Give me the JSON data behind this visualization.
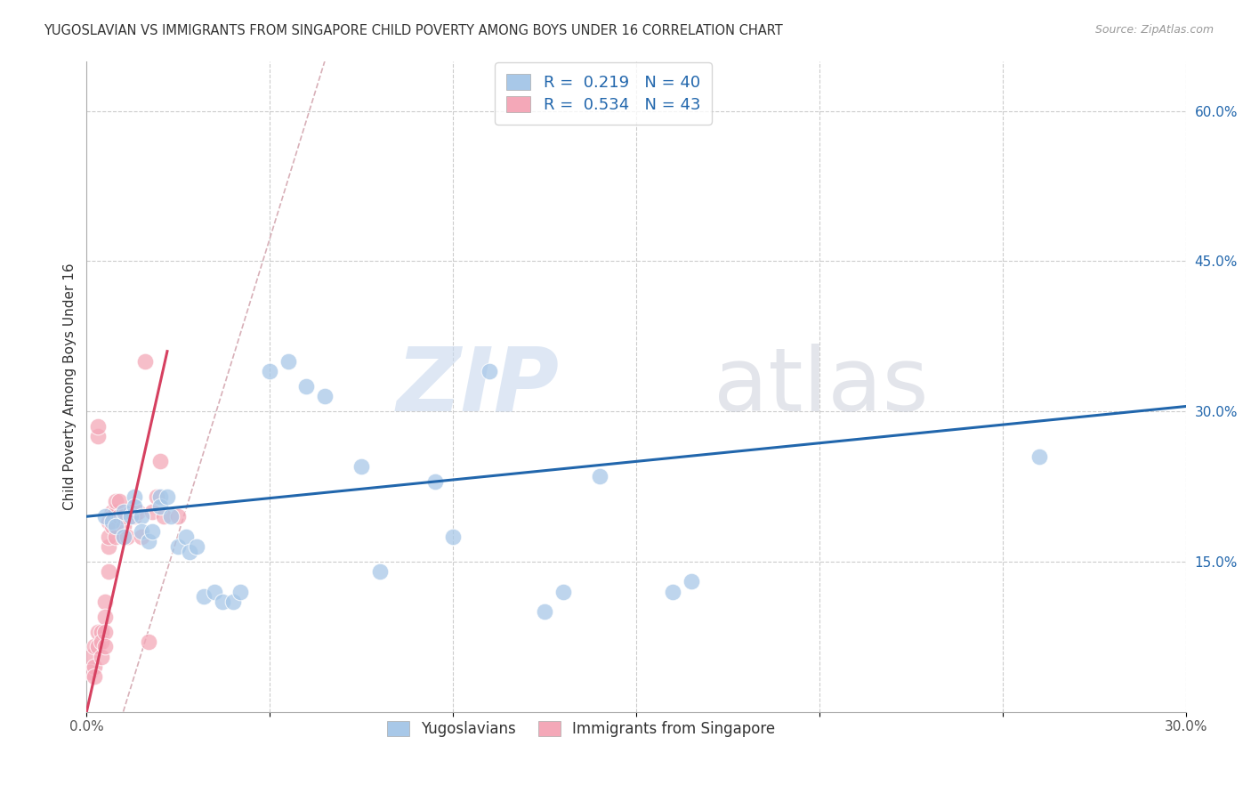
{
  "title": "YUGOSLAVIAN VS IMMIGRANTS FROM SINGAPORE CHILD POVERTY AMONG BOYS UNDER 16 CORRELATION CHART",
  "source": "Source: ZipAtlas.com",
  "ylabel": "Child Poverty Among Boys Under 16",
  "xlim": [
    0.0,
    0.3
  ],
  "ylim": [
    0.0,
    0.65
  ],
  "x_ticks": [
    0.0,
    0.05,
    0.1,
    0.15,
    0.2,
    0.25,
    0.3
  ],
  "x_tick_labels": [
    "0.0%",
    "",
    "",
    "",
    "",
    "",
    "30.0%"
  ],
  "y_ticks_right": [
    0.15,
    0.3,
    0.45,
    0.6
  ],
  "y_tick_labels_right": [
    "15.0%",
    "30.0%",
    "45.0%",
    "60.0%"
  ],
  "blue_R": 0.219,
  "blue_N": 40,
  "pink_R": 0.534,
  "pink_N": 43,
  "blue_color": "#a8c8e8",
  "pink_color": "#f4a8b8",
  "blue_line_color": "#2166ac",
  "pink_line_color": "#d64060",
  "ref_line_color": "#d8b0b8",
  "blue_line_x0": 0.0,
  "blue_line_y0": 0.195,
  "blue_line_x1": 0.3,
  "blue_line_y1": 0.305,
  "pink_line_x0": 0.0,
  "pink_line_y0": 0.0,
  "pink_line_x1": 0.022,
  "pink_line_y1": 0.36,
  "ref_line_x0": 0.01,
  "ref_line_y0": 0.0,
  "ref_line_x1": 0.065,
  "ref_line_y1": 0.65,
  "blue_scatter_x": [
    0.005,
    0.007,
    0.008,
    0.01,
    0.01,
    0.012,
    0.013,
    0.013,
    0.015,
    0.015,
    0.017,
    0.018,
    0.02,
    0.02,
    0.022,
    0.023,
    0.025,
    0.027,
    0.028,
    0.03,
    0.032,
    0.035,
    0.037,
    0.04,
    0.042,
    0.05,
    0.055,
    0.06,
    0.065,
    0.075,
    0.08,
    0.095,
    0.1,
    0.11,
    0.125,
    0.13,
    0.14,
    0.16,
    0.165,
    0.26
  ],
  "blue_scatter_y": [
    0.195,
    0.19,
    0.185,
    0.2,
    0.175,
    0.195,
    0.215,
    0.205,
    0.195,
    0.18,
    0.17,
    0.18,
    0.215,
    0.205,
    0.215,
    0.195,
    0.165,
    0.175,
    0.16,
    0.165,
    0.115,
    0.12,
    0.11,
    0.11,
    0.12,
    0.34,
    0.35,
    0.325,
    0.315,
    0.245,
    0.14,
    0.23,
    0.175,
    0.34,
    0.1,
    0.12,
    0.235,
    0.12,
    0.13,
    0.255
  ],
  "pink_scatter_x": [
    0.001,
    0.001,
    0.002,
    0.002,
    0.002,
    0.003,
    0.003,
    0.003,
    0.003,
    0.004,
    0.004,
    0.004,
    0.005,
    0.005,
    0.005,
    0.005,
    0.006,
    0.006,
    0.006,
    0.006,
    0.007,
    0.007,
    0.007,
    0.008,
    0.008,
    0.008,
    0.009,
    0.009,
    0.01,
    0.01,
    0.01,
    0.011,
    0.012,
    0.013,
    0.014,
    0.015,
    0.016,
    0.017,
    0.018,
    0.019,
    0.02,
    0.021,
    0.025
  ],
  "pink_scatter_y": [
    0.055,
    0.04,
    0.065,
    0.045,
    0.035,
    0.275,
    0.285,
    0.08,
    0.065,
    0.08,
    0.07,
    0.055,
    0.11,
    0.095,
    0.08,
    0.065,
    0.165,
    0.175,
    0.19,
    0.14,
    0.2,
    0.195,
    0.185,
    0.175,
    0.2,
    0.21,
    0.195,
    0.21,
    0.175,
    0.185,
    0.195,
    0.175,
    0.2,
    0.195,
    0.2,
    0.175,
    0.35,
    0.07,
    0.2,
    0.215,
    0.25,
    0.195,
    0.195
  ]
}
